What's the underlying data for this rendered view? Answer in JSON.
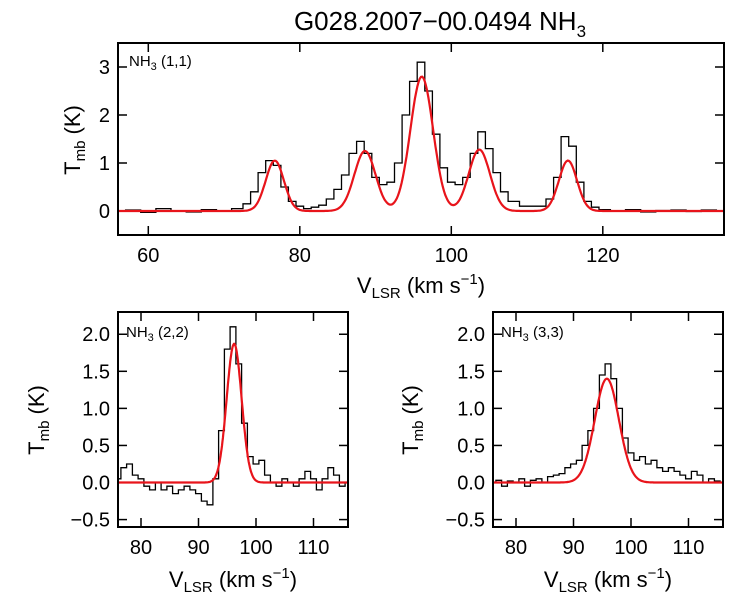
{
  "figure": {
    "title_main": "G028.2007−00.0494 NH",
    "title_sub": "3"
  },
  "colors": {
    "data": "#000000",
    "model": "#e8141b"
  },
  "chart_data": [
    {
      "type": "line",
      "label_main": "NH",
      "label_sub": "3",
      "label_rest": " (1,1)",
      "xlabel_main": "V",
      "xlabel_sub": "LSR",
      "xlabel_rest": " (km s",
      "xlabel_sup": "−1",
      "xlabel_close": ")",
      "ylabel_main": "T",
      "ylabel_sub": "mb",
      "ylabel_rest": " (K)",
      "xlim": [
        56,
        136
      ],
      "ylim": [
        -0.5,
        3.5
      ],
      "xticks": [
        60,
        80,
        100,
        120
      ],
      "yticks": [
        0,
        1,
        2,
        3
      ],
      "xtick_labels": [
        "60",
        "80",
        "100",
        "120"
      ],
      "ytick_labels": [
        "0",
        "1",
        "2",
        "3"
      ],
      "series": [
        {
          "style": "step",
          "x": [
            56,
            58,
            60,
            62,
            64,
            66,
            68,
            70,
            72,
            73,
            74,
            75,
            76,
            77,
            78,
            79,
            80,
            81,
            82,
            83,
            84,
            85,
            86,
            87,
            88,
            89,
            90,
            91,
            92,
            93,
            94,
            95,
            96,
            97,
            98,
            99,
            100,
            101,
            102,
            103,
            104,
            105,
            106,
            107,
            108,
            110,
            112,
            113,
            114,
            115,
            116,
            117,
            118,
            119,
            120,
            122,
            124,
            126,
            128,
            130,
            132,
            134,
            136
          ],
          "y": [
            0.0,
            0.02,
            -0.03,
            0.05,
            0.0,
            -0.02,
            0.03,
            0.0,
            0.05,
            0.15,
            0.4,
            0.8,
            1.05,
            0.95,
            0.5,
            0.2,
            0.1,
            0.05,
            0.08,
            0.12,
            0.25,
            0.45,
            0.75,
            1.2,
            1.45,
            1.2,
            0.7,
            0.55,
            0.6,
            1.0,
            2.0,
            2.7,
            3.1,
            2.5,
            1.6,
            0.9,
            0.6,
            0.55,
            0.7,
            1.2,
            1.65,
            1.3,
            0.8,
            0.4,
            0.2,
            0.1,
            0.1,
            0.25,
            0.7,
            1.55,
            1.35,
            0.6,
            0.2,
            0.08,
            0.03,
            0.0,
            0.03,
            -0.02,
            0.01,
            0.02,
            -0.01,
            0.02,
            0.0
          ]
        },
        {
          "style": "model",
          "components": [
            {
              "center": 76.7,
              "amplitude": 1.05,
              "sigma": 1.2
            },
            {
              "center": 88.6,
              "amplitude": 1.25,
              "sigma": 1.4
            },
            {
              "center": 96.1,
              "amplitude": 2.8,
              "sigma": 1.5
            },
            {
              "center": 103.7,
              "amplitude": 1.28,
              "sigma": 1.4
            },
            {
              "center": 115.4,
              "amplitude": 1.05,
              "sigma": 1.2
            }
          ]
        }
      ]
    },
    {
      "type": "line",
      "label_main": "NH",
      "label_sub": "3",
      "label_rest": " (2,2)",
      "xlabel_main": "V",
      "xlabel_sub": "LSR",
      "xlabel_rest": " (km s",
      "xlabel_sup": "−1",
      "xlabel_close": ")",
      "ylabel_main": "T",
      "ylabel_sub": "mb",
      "ylabel_rest": " (K)",
      "xlim": [
        76,
        116
      ],
      "ylim": [
        -0.6,
        2.3
      ],
      "xticks": [
        80,
        90,
        100,
        110
      ],
      "yticks": [
        -0.5,
        0.0,
        0.5,
        1.0,
        1.5,
        2.0
      ],
      "xtick_labels": [
        "80",
        "90",
        "100",
        "110"
      ],
      "ytick_labels": [
        "−0.5",
        "0.0",
        "0.5",
        "1.0",
        "1.5",
        "2.0"
      ],
      "series": [
        {
          "style": "step",
          "x": [
            76,
            77,
            78,
            79,
            80,
            81,
            82,
            83,
            84,
            85,
            86,
            87,
            88,
            89,
            90,
            91,
            92,
            93,
            94,
            95,
            96,
            97,
            98,
            99,
            100,
            101,
            102,
            103,
            104,
            105,
            106,
            107,
            108,
            109,
            110,
            111,
            112,
            113,
            114,
            115,
            116
          ],
          "y": [
            0.05,
            0.2,
            0.25,
            0.1,
            0.05,
            -0.05,
            -0.1,
            0.0,
            -0.1,
            -0.05,
            -0.15,
            -0.1,
            -0.05,
            -0.1,
            -0.15,
            -0.25,
            -0.3,
            0.05,
            0.7,
            1.8,
            2.1,
            1.6,
            0.8,
            0.35,
            0.25,
            0.3,
            0.1,
            0.0,
            -0.05,
            0.05,
            0.0,
            -0.05,
            0.05,
            0.15,
            0.05,
            -0.1,
            0.05,
            0.2,
            0.1,
            -0.05,
            0.0
          ]
        },
        {
          "style": "model",
          "components": [
            {
              "center": 96.2,
              "amplitude": 1.87,
              "sigma": 1.3
            }
          ]
        }
      ]
    },
    {
      "type": "line",
      "label_main": "NH",
      "label_sub": "3",
      "label_rest": " (3,3)",
      "xlabel_main": "V",
      "xlabel_sub": "LSR",
      "xlabel_rest": " (km s",
      "xlabel_sup": "−1",
      "xlabel_close": ")",
      "ylabel_main": "T",
      "ylabel_sub": "mb",
      "ylabel_rest": " (K)",
      "xlim": [
        76,
        116
      ],
      "ylim": [
        -0.6,
        2.3
      ],
      "xticks": [
        80,
        90,
        100,
        110
      ],
      "yticks": [
        -0.5,
        0.0,
        0.5,
        1.0,
        1.5,
        2.0
      ],
      "xtick_labels": [
        "80",
        "90",
        "100",
        "110"
      ],
      "ytick_labels": [
        "−0.5",
        "0.0",
        "0.5",
        "1.0",
        "1.5",
        "2.0"
      ],
      "series": [
        {
          "style": "step",
          "x": [
            76,
            77,
            78,
            79,
            80,
            81,
            82,
            83,
            84,
            85,
            86,
            87,
            88,
            89,
            90,
            91,
            92,
            93,
            94,
            95,
            96,
            97,
            98,
            99,
            100,
            101,
            102,
            103,
            104,
            105,
            106,
            107,
            108,
            109,
            110,
            111,
            112,
            113,
            114,
            115,
            116
          ],
          "y": [
            0.0,
            0.03,
            -0.05,
            0.02,
            0.0,
            0.05,
            -0.05,
            0.03,
            0.05,
            0.0,
            0.08,
            0.1,
            0.12,
            0.2,
            0.25,
            0.3,
            0.5,
            0.7,
            1.0,
            1.45,
            1.6,
            1.4,
            1.0,
            0.6,
            0.4,
            0.3,
            0.35,
            0.25,
            0.3,
            0.2,
            0.15,
            0.2,
            0.15,
            0.1,
            0.05,
            0.15,
            0.1,
            0.0,
            0.05,
            0.02,
            0.0
          ]
        },
        {
          "style": "model",
          "components": [
            {
              "center": 95.8,
              "amplitude": 1.4,
              "sigma": 2.1
            }
          ]
        }
      ]
    }
  ]
}
